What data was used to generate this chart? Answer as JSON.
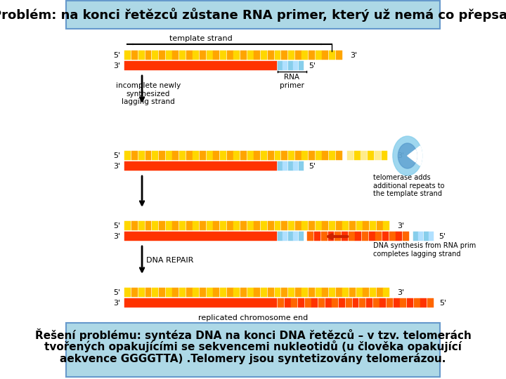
{
  "title": "Problém: na konci řetězců zůstane RNA primer, který už nemá co přepsat",
  "title_bg": "#add8e6",
  "title_fontsize": 13,
  "bottom_text_line1": "Řešení problému: syntéza DNA na konci DNA řetězců – v tzv. telomerách",
  "bottom_text_line2": "tvořených opakujícími se sekvencemi nukleotidů (u člověka opakující",
  "bottom_text_line3": "aekvence GGGGTTA) .Telomery jsou syntetizovány telomerázou.",
  "bottom_bg": "#add8e6",
  "bg_color": "#ffffff",
  "diagram_bg": "#ffffff"
}
